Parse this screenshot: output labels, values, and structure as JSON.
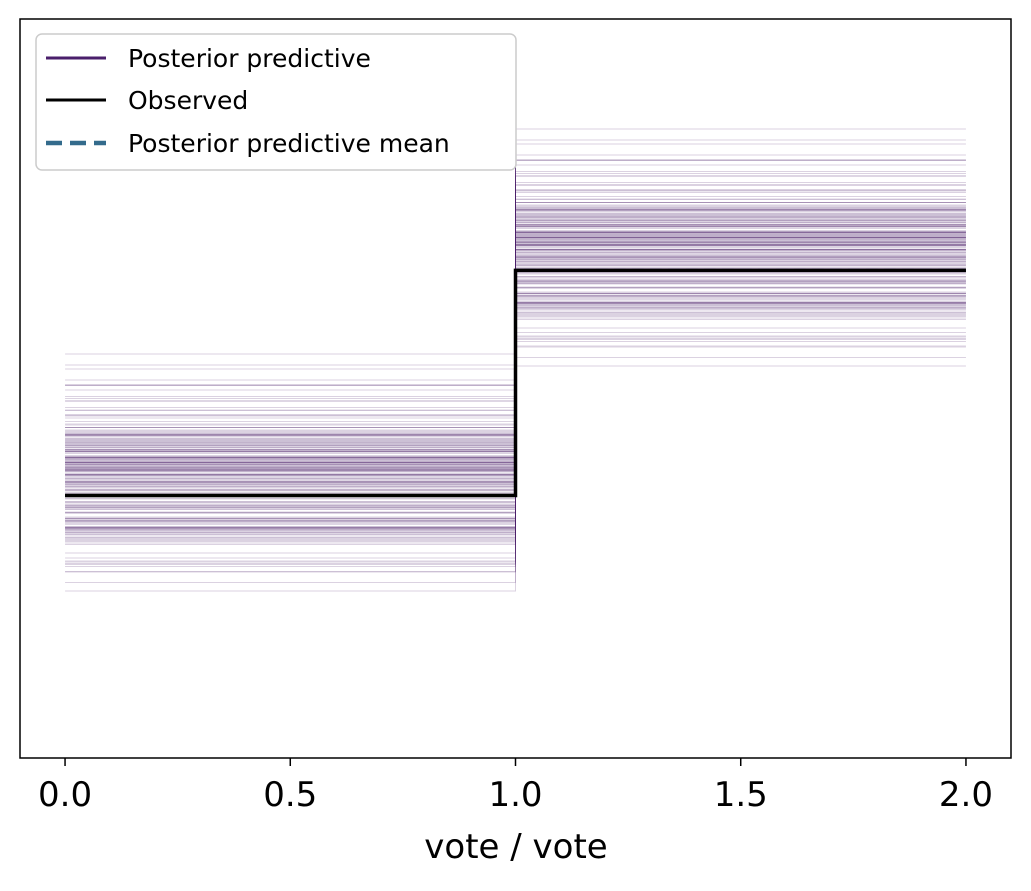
{
  "chart_data": {
    "type": "line",
    "subtype": "posterior-predictive-check-ecdf-step",
    "title": "",
    "xlabel": "vote / vote",
    "ylabel": "",
    "xlim": [
      -0.1,
      2.1
    ],
    "x_ticks": [
      0.0,
      0.5,
      1.0,
      1.5,
      2.0
    ],
    "x_tick_labels": [
      "0.0",
      "0.5",
      "1.0",
      "1.5",
      "2.0"
    ],
    "y_ticks_visible": false,
    "grid": false,
    "legend": {
      "position": "top-left",
      "entries": [
        {
          "label": "Posterior predictive",
          "color": "#4a1f6b",
          "style": "solid"
        },
        {
          "label": "Observed",
          "color": "#000000",
          "style": "solid"
        },
        {
          "label": "Posterior predictive mean",
          "color": "#336b8c",
          "style": "dashed"
        }
      ]
    },
    "series": [
      {
        "name": "Posterior predictive",
        "description_type": "many_step_samples",
        "x_segments": [
          [
            0.0,
            1.0
          ],
          [
            1.0,
            2.0
          ]
        ],
        "color": "#4a1f6b",
        "segment1_y_min": 0.055,
        "segment1_y_max": 0.68,
        "segment2_y_min": 0.4,
        "segment2_y_max": 1.0
      },
      {
        "name": "Observed",
        "color": "#000000",
        "x": [
          0.0,
          1.0,
          1.0,
          2.0
        ],
        "y": [
          0.34,
          0.34,
          0.675,
          0.675
        ]
      },
      {
        "name": "Posterior predictive mean",
        "color": "#336b8c",
        "x": [
          0.0,
          1.0,
          1.0,
          2.0
        ],
        "y": [
          0.34,
          0.34,
          0.675,
          0.675
        ]
      }
    ]
  }
}
